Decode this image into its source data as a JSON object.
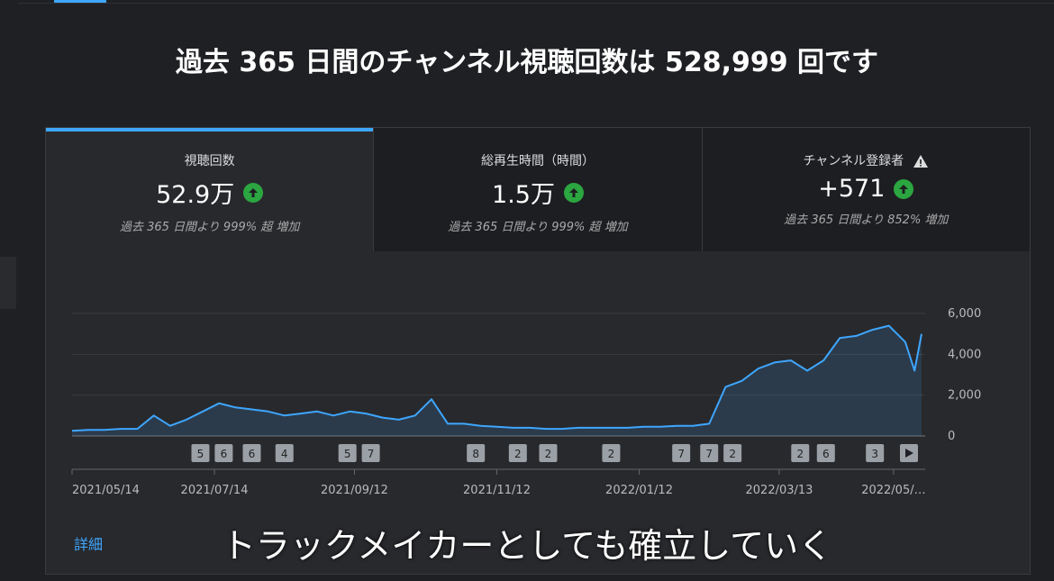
{
  "title": "過去 365 日間のチャンネル視聴回数は 528,999 回です",
  "cards": [
    {
      "label": "視聴回数",
      "value": "52.9万",
      "change": "過去 365 日間より 999% 超 増加"
    },
    {
      "label": "総再生時間（時間）",
      "value": "1.5万",
      "change": "過去 365 日間より 999% 超 増加"
    },
    {
      "label": "チャンネル登録者",
      "value": "+571",
      "change": "過去 365 日間より 852% 増加"
    }
  ],
  "chart_data": {
    "type": "area",
    "color": "#3ea6ff",
    "x": [
      "2021/05/14",
      "2021/05/21",
      "2021/05/28",
      "2021/06/04",
      "2021/06/11",
      "2021/06/18",
      "2021/06/25",
      "2021/07/02",
      "2021/07/09",
      "2021/07/16",
      "2021/07/23",
      "2021/07/30",
      "2021/08/06",
      "2021/08/13",
      "2021/08/20",
      "2021/08/27",
      "2021/09/03",
      "2021/09/10",
      "2021/09/17",
      "2021/09/24",
      "2021/10/01",
      "2021/10/08",
      "2021/10/15",
      "2021/10/22",
      "2021/10/29",
      "2021/11/05",
      "2021/11/12",
      "2021/11/19",
      "2021/11/26",
      "2021/12/03",
      "2021/12/10",
      "2021/12/17",
      "2021/12/24",
      "2021/12/31",
      "2022/01/07",
      "2022/01/14",
      "2022/01/21",
      "2022/01/28",
      "2022/02/04",
      "2022/02/11",
      "2022/02/18",
      "2022/02/25",
      "2022/03/04",
      "2022/03/11",
      "2022/03/18",
      "2022/03/25",
      "2022/04/01",
      "2022/04/08",
      "2022/04/15",
      "2022/04/22",
      "2022/04/29",
      "2022/05/06",
      "2022/05/10",
      "2022/05/13"
    ],
    "values": [
      250,
      300,
      300,
      350,
      350,
      1000,
      500,
      800,
      1200,
      1600,
      1400,
      1300,
      1200,
      1000,
      1100,
      1200,
      1000,
      1200,
      1100,
      900,
      800,
      1000,
      1800,
      600,
      600,
      500,
      450,
      400,
      400,
      350,
      350,
      400,
      400,
      400,
      400,
      450,
      450,
      500,
      500,
      600,
      2400,
      2700,
      3300,
      3600,
      3700,
      3200,
      3700,
      4800,
      4900,
      5200,
      5400,
      4600,
      3200,
      5000
    ],
    "xlim": [
      "2021/05/14",
      "2022/05/13"
    ],
    "xticks": [
      "2021/05/14",
      "2021/07/14",
      "2021/09/12",
      "2021/11/12",
      "2022/01/12",
      "2022/03/13",
      {
        "value": "2022/05",
        "label": "2022/05/…"
      }
    ],
    "ylim": [
      0,
      6000
    ],
    "yticks": [
      0,
      {
        "value": 2000,
        "label": "2,000"
      },
      {
        "value": 4000,
        "label": "4,000"
      },
      {
        "value": 6000,
        "label": "6,000"
      }
    ],
    "grid": true,
    "annotations": [
      {
        "x": "2021/07/08",
        "label": 5
      },
      {
        "x": "2021/07/18",
        "label": 6
      },
      {
        "x": "2021/07/30",
        "label": 6
      },
      {
        "x": "2021/08/13",
        "label": 4
      },
      {
        "x": "2021/09/09",
        "label": 5
      },
      {
        "x": "2021/09/19",
        "label": 7
      },
      {
        "x": "2021/11/03",
        "label": 8
      },
      {
        "x": "2021/11/21",
        "label": 2
      },
      {
        "x": "2021/12/04",
        "label": 2
      },
      {
        "x": "2021/12/31",
        "label": 2
      },
      {
        "x": "2022/01/30",
        "label": 7
      },
      {
        "x": "2022/02/11",
        "label": 7
      },
      {
        "x": "2022/02/21",
        "label": 2
      },
      {
        "x": "2022/03/22",
        "label": 2
      },
      {
        "x": "2022/04/02",
        "label": 6
      },
      {
        "x": "2022/04/23",
        "label": 3
      }
    ]
  },
  "details_link": "詳細",
  "caption": "トラックメイカーとしても確立していく"
}
